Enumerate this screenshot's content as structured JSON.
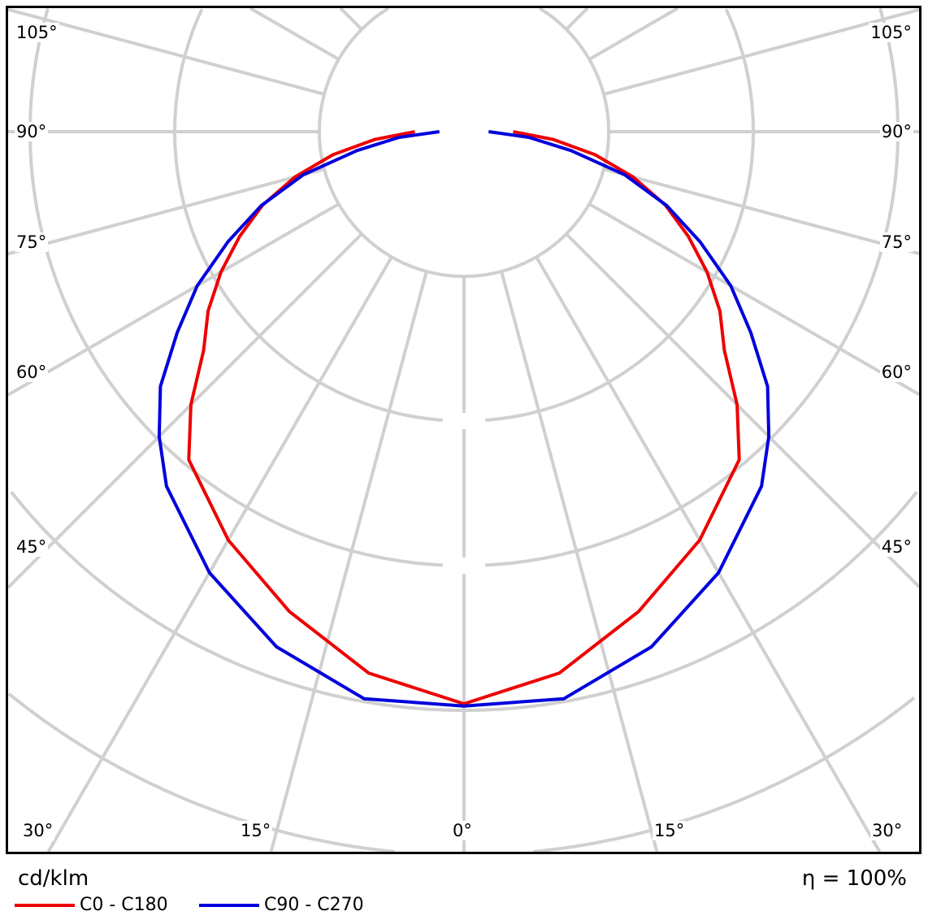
{
  "chart_data": {
    "type": "polar",
    "unit_label": "cd/klm",
    "efficiency_label": "η = 100%",
    "angle_labels_left": [
      "105°",
      "90°",
      "75°",
      "60°",
      "45°"
    ],
    "angle_labels_right": [
      "105°",
      "90°",
      "75°",
      "60°",
      "45°"
    ],
    "angle_labels_bottom": [
      "30°",
      "15°",
      "0°",
      "15°",
      "30°"
    ],
    "grid": true,
    "gamma_angles": [
      0,
      10,
      20,
      30,
      40,
      45,
      50,
      55,
      60,
      65,
      70,
      75,
      80,
      85,
      90
    ],
    "series": [
      {
        "name": "C0 - C180",
        "color": "#ee0000",
        "values": [
          3.955,
          3.8,
          3.53,
          3.26,
          2.96,
          2.67,
          2.35,
          2.16,
          1.94,
          1.71,
          1.48,
          1.21,
          0.92,
          0.62,
          0.34
        ]
      },
      {
        "name": "C90 - C270",
        "color": "#0000dd",
        "values": [
          3.97,
          3.98,
          3.79,
          3.52,
          3.2,
          2.98,
          2.74,
          2.42,
          2.13,
          1.8,
          1.49,
          1.15,
          0.75,
          0.45,
          0.17
        ]
      }
    ],
    "legend_position": "bottom-left"
  }
}
